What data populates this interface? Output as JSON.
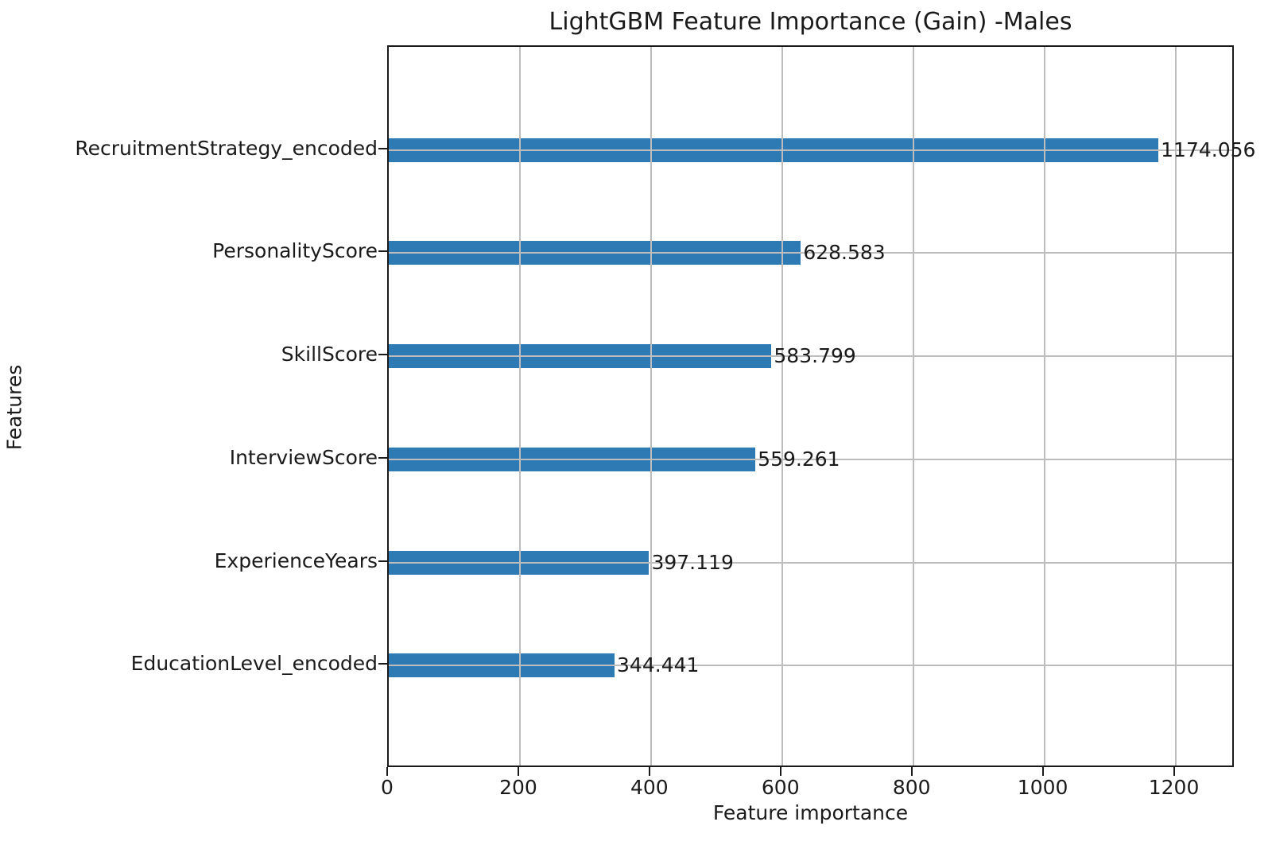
{
  "chart_data": {
    "type": "bar",
    "orientation": "horizontal",
    "title": "LightGBM Feature Importance (Gain) -Males",
    "xlabel": "Feature importance",
    "ylabel": "Features",
    "categories": [
      "RecruitmentStrategy_encoded",
      "PersonalityScore",
      "SkillScore",
      "InterviewScore",
      "ExperienceYears",
      "EducationLevel_encoded"
    ],
    "values": [
      1174.056,
      628.583,
      583.799,
      559.261,
      397.119,
      344.441
    ],
    "value_labels": [
      "1174.056",
      "628.583",
      "583.799",
      "559.261",
      "397.119",
      "344.441"
    ],
    "xticks": [
      0,
      200,
      400,
      600,
      800,
      1000,
      1200
    ],
    "xtick_labels": [
      "0",
      "200",
      "400",
      "600",
      "800",
      "1000",
      "1200"
    ],
    "xlim": [
      0,
      1291.5
    ],
    "ylim": [
      -1,
      6
    ],
    "grid": true,
    "grid_over_bars": true,
    "legend_position": "none",
    "colors": {
      "bar": "#2e7ab5",
      "grid": "#bdbdbd",
      "spine": "#1a1a1a",
      "text": "#1a1a1a",
      "background": "#ffffff"
    }
  }
}
